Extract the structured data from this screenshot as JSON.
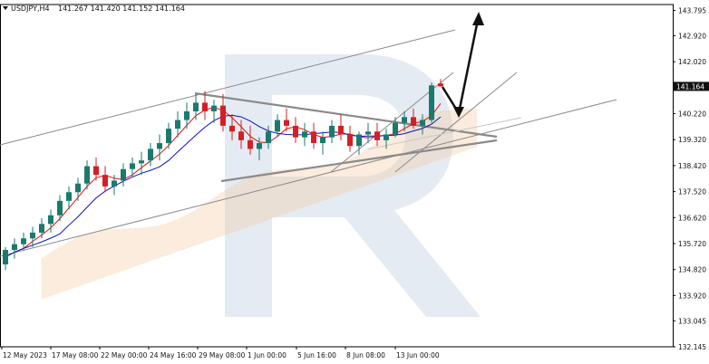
{
  "header": {
    "symbol": "USDJPY,H4",
    "ohlc": "141.267 141.420 141.152 141.164"
  },
  "chart_data": {
    "type": "candlestick",
    "symbol": "USDJPY",
    "timeframe": "H4",
    "ylim": [
      132.145,
      144.0
    ],
    "y_ticks": [
      "143.795",
      "142.920",
      "142.020",
      "141.164",
      "140.220",
      "139.320",
      "138.420",
      "137.520",
      "136.620",
      "135.720",
      "134.820",
      "133.920",
      "133.045",
      "132.145"
    ],
    "current_price": "141.164",
    "x_ticks": [
      "12 May 2023",
      "17 May 08:00",
      "22 May 00:00",
      "24 May 16:00",
      "29 May 08:00",
      "1 Jun 00:00",
      "5 Jun 16:00",
      "8 Jun 08:00",
      "13 Jun 00:00"
    ],
    "candles_ohlc_approx": [
      [
        135.0,
        135.6,
        134.8,
        135.5
      ],
      [
        135.5,
        135.9,
        135.2,
        135.7
      ],
      [
        135.7,
        136.1,
        135.5,
        135.9
      ],
      [
        135.9,
        136.3,
        135.6,
        136.1
      ],
      [
        136.1,
        136.6,
        135.9,
        136.4
      ],
      [
        136.4,
        136.9,
        136.1,
        136.7
      ],
      [
        136.7,
        137.4,
        136.5,
        137.2
      ],
      [
        137.2,
        137.7,
        136.9,
        137.5
      ],
      [
        137.5,
        138.0,
        137.2,
        137.8
      ],
      [
        137.8,
        138.6,
        137.6,
        138.4
      ],
      [
        138.4,
        138.7,
        137.9,
        138.1
      ],
      [
        138.1,
        138.4,
        137.5,
        137.7
      ],
      [
        137.7,
        138.1,
        137.4,
        137.9
      ],
      [
        137.9,
        138.5,
        137.7,
        138.3
      ],
      [
        138.3,
        138.7,
        138.0,
        138.5
      ],
      [
        138.5,
        138.9,
        138.1,
        138.6
      ],
      [
        138.6,
        139.2,
        138.4,
        139.0
      ],
      [
        139.0,
        139.5,
        138.6,
        139.2
      ],
      [
        139.2,
        139.9,
        139.0,
        139.7
      ],
      [
        139.7,
        140.3,
        139.4,
        140.0
      ],
      [
        140.0,
        140.6,
        139.7,
        140.3
      ],
      [
        140.3,
        140.9,
        140.0,
        140.6
      ],
      [
        140.6,
        141.0,
        140.0,
        140.3
      ],
      [
        140.3,
        140.7,
        139.9,
        140.5
      ],
      [
        140.5,
        140.9,
        139.6,
        139.8
      ],
      [
        139.8,
        140.2,
        139.3,
        139.6
      ],
      [
        139.6,
        140.0,
        139.0,
        139.3
      ],
      [
        139.3,
        139.8,
        138.8,
        139.0
      ],
      [
        139.0,
        139.4,
        138.6,
        139.2
      ],
      [
        139.2,
        139.8,
        139.0,
        139.6
      ],
      [
        139.6,
        140.2,
        139.4,
        140.0
      ],
      [
        140.0,
        140.4,
        139.6,
        139.8
      ],
      [
        139.8,
        140.1,
        139.2,
        139.4
      ],
      [
        139.4,
        139.9,
        139.1,
        139.6
      ],
      [
        139.6,
        139.9,
        139.0,
        139.2
      ],
      [
        139.2,
        139.6,
        138.8,
        139.4
      ],
      [
        139.4,
        140.0,
        139.2,
        139.8
      ],
      [
        139.8,
        140.2,
        139.3,
        139.5
      ],
      [
        139.5,
        139.8,
        138.9,
        139.1
      ],
      [
        139.1,
        139.6,
        138.8,
        139.5
      ],
      [
        139.5,
        139.9,
        139.2,
        139.6
      ],
      [
        139.6,
        139.9,
        139.1,
        139.3
      ],
      [
        139.3,
        139.7,
        139.0,
        139.5
      ],
      [
        139.5,
        140.1,
        139.4,
        139.9
      ],
      [
        139.9,
        140.3,
        139.6,
        140.1
      ],
      [
        140.1,
        140.4,
        139.7,
        139.8
      ],
      [
        139.8,
        140.2,
        139.5,
        140.0
      ],
      [
        140.0,
        141.3,
        139.9,
        141.2
      ],
      [
        141.267,
        141.42,
        141.152,
        141.164
      ]
    ],
    "annotations": [
      "price forecast arrow (down then up)"
    ]
  }
}
